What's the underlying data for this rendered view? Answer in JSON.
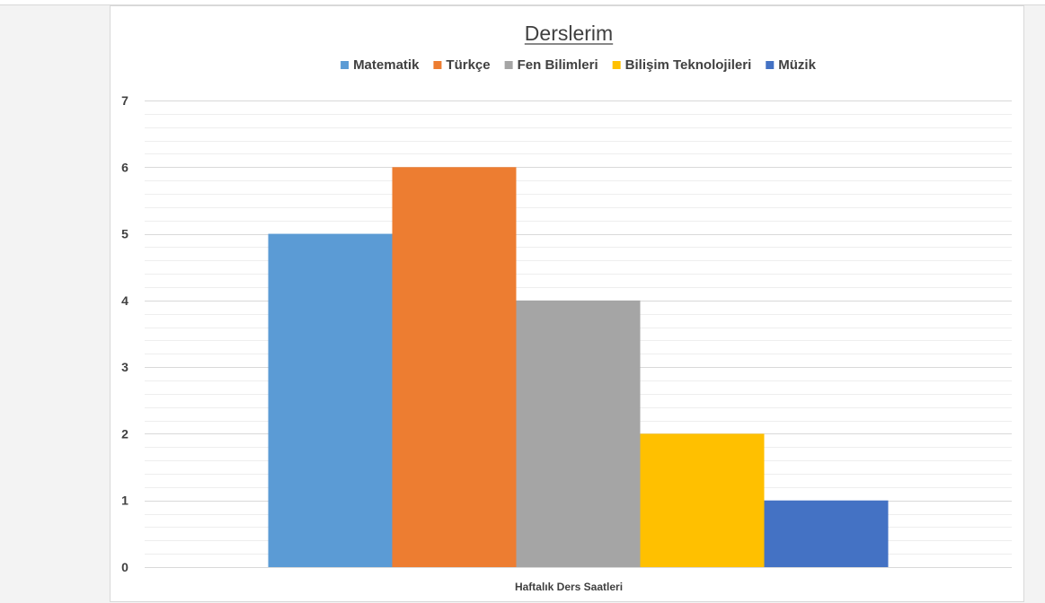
{
  "chart_data": {
    "type": "bar",
    "title": "Derslerim",
    "categories": [
      "Haftalık Ders Saatleri"
    ],
    "series": [
      {
        "name": "Matematik",
        "values": [
          5
        ],
        "color": "#5B9BD5"
      },
      {
        "name": "Türkçe",
        "values": [
          6
        ],
        "color": "#ED7D31"
      },
      {
        "name": "Fen Bilimleri",
        "values": [
          4
        ],
        "color": "#A5A5A5"
      },
      {
        "name": "Bilişim Teknolojileri",
        "values": [
          2
        ],
        "color": "#FFC000"
      },
      {
        "name": "Müzik",
        "values": [
          1
        ],
        "color": "#4472C4"
      }
    ],
    "yticks": [
      "0",
      "1",
      "2",
      "3",
      "4",
      "5",
      "6",
      "7"
    ],
    "ylim": [
      0,
      7
    ],
    "grid": true,
    "legend_position": "top"
  }
}
